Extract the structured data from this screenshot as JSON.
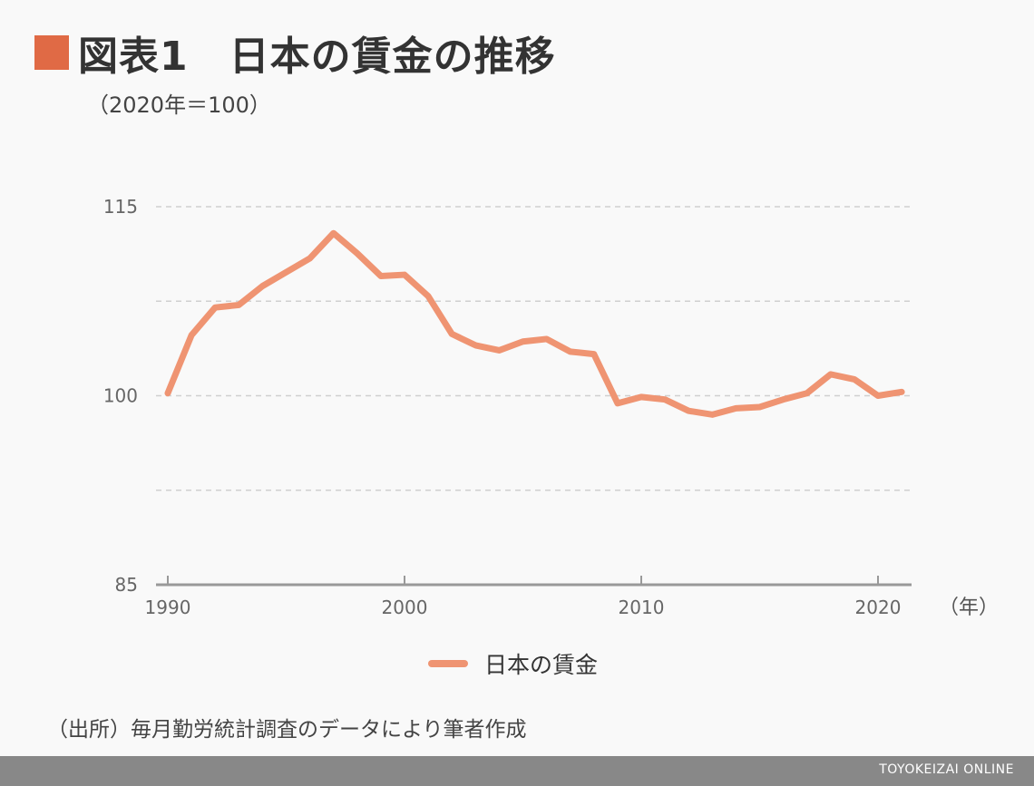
{
  "header": {
    "title": "図表1　日本の賃金の推移",
    "unit": "（2020年＝100）"
  },
  "colors": {
    "accent": "#e06a45",
    "line": "#ef9472",
    "grid": "#d0d0d0",
    "axis": "#999999",
    "footer_bg": "#888888"
  },
  "chart_data": {
    "type": "line",
    "title": "日本の賃金の推移",
    "ylabel": "（2020年＝100）",
    "xlabel": "（年）",
    "ylim": [
      85,
      115
    ],
    "yticks": [
      85,
      100,
      115
    ],
    "ygrid_lines": [
      92.5,
      100,
      107.5,
      115
    ],
    "xlim": [
      1990,
      2021
    ],
    "xticks": [
      1990,
      2000,
      2010,
      2020
    ],
    "grid": true,
    "legend_position": "bottom-center",
    "series": [
      {
        "name": "日本の賃金",
        "x": [
          1990,
          1991,
          1992,
          1993,
          1994,
          1995,
          1996,
          1997,
          1998,
          1999,
          2000,
          2001,
          2002,
          2003,
          2004,
          2005,
          2006,
          2007,
          2008,
          2009,
          2010,
          2011,
          2012,
          2013,
          2014,
          2015,
          2016,
          2017,
          2018,
          2019,
          2020,
          2021
        ],
        "values": [
          100.2,
          104.8,
          107.0,
          107.2,
          108.7,
          109.8,
          110.9,
          112.9,
          111.3,
          109.5,
          109.6,
          107.9,
          104.9,
          104.0,
          103.6,
          104.3,
          104.5,
          103.5,
          103.3,
          99.4,
          99.9,
          99.7,
          98.8,
          98.5,
          99.0,
          99.1,
          99.7,
          100.2,
          101.7,
          101.3,
          100.0,
          100.3
        ]
      }
    ]
  },
  "legend": {
    "label": "日本の賃金"
  },
  "source": "（出所）毎月勤労統計調査のデータにより筆者作成",
  "footer": {
    "brand": "TOYOKEIZAI ONLINE"
  }
}
